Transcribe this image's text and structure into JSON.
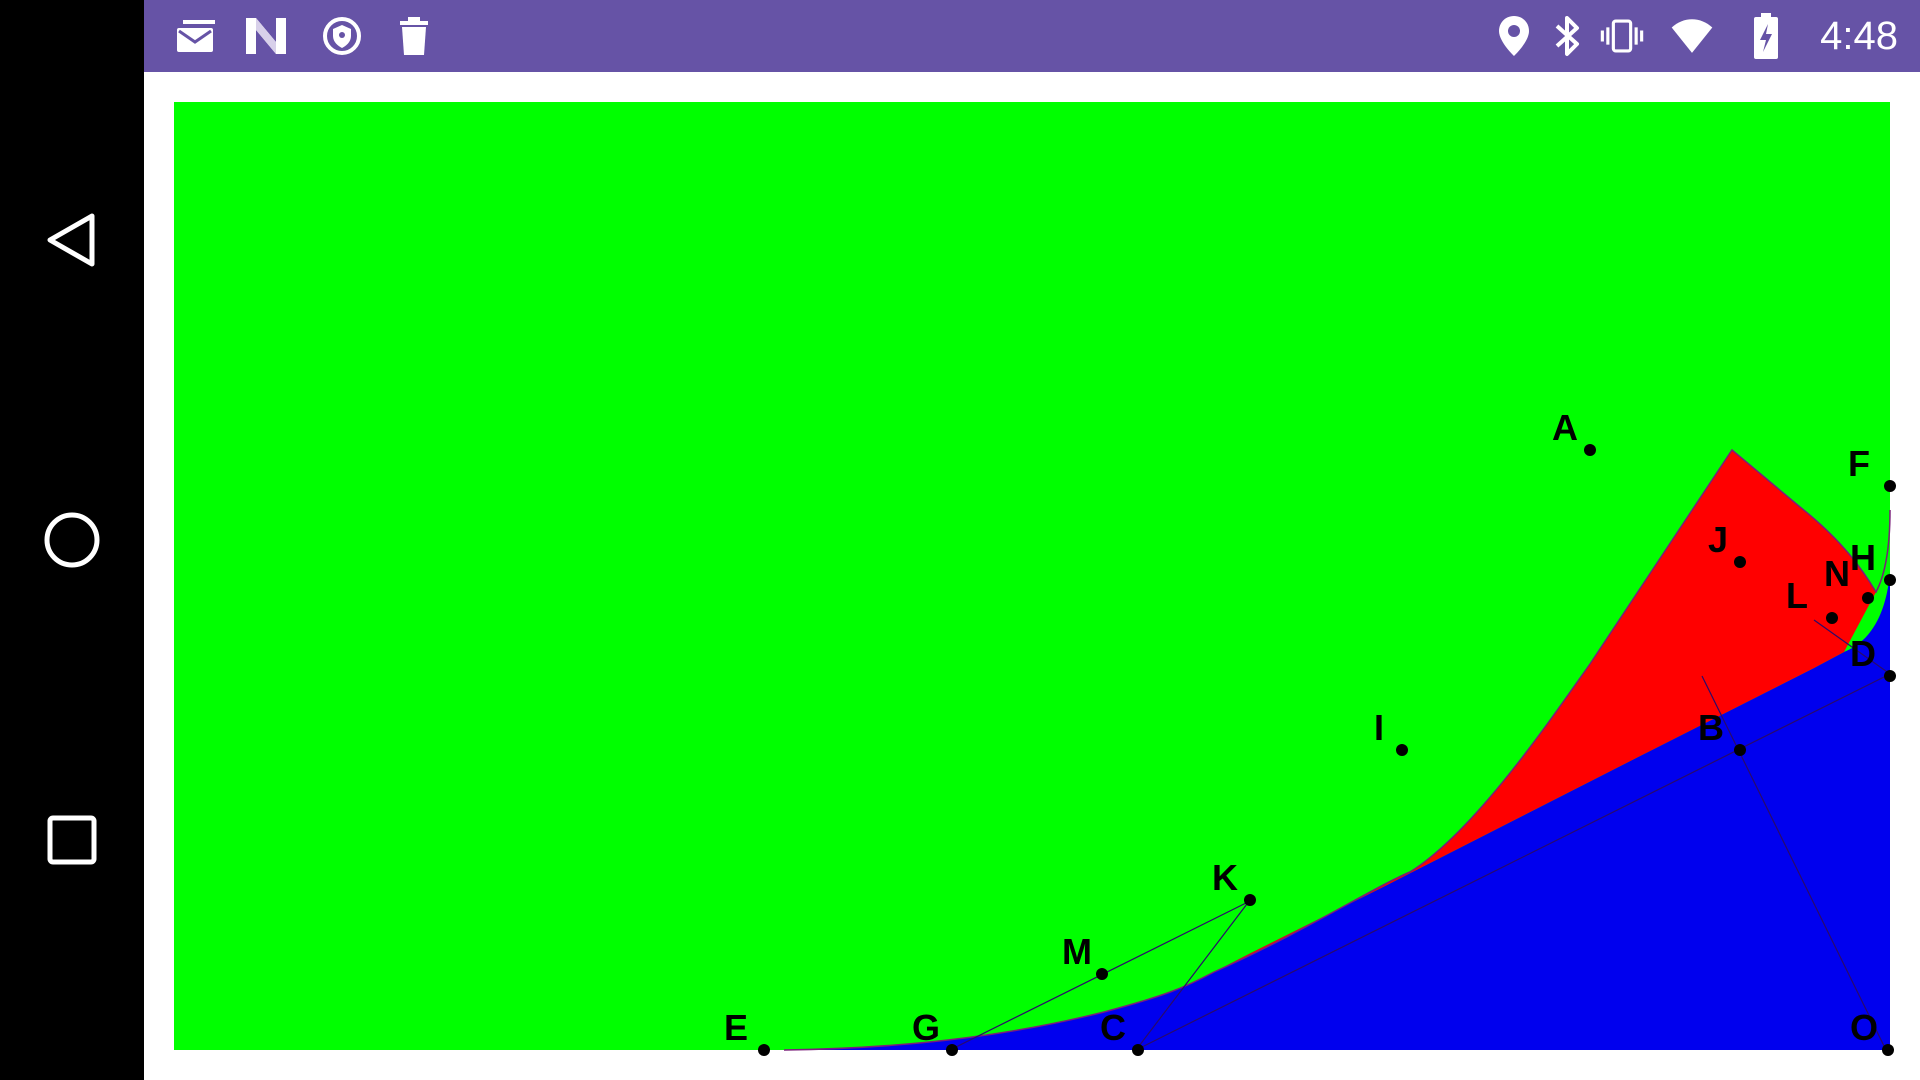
{
  "status_bar": {
    "time": "4:48",
    "background": "#6653a6",
    "left_icons": [
      "sms-message-icon",
      "n-notification-icon",
      "vpn-shield-icon",
      "trash-icon"
    ],
    "right_icons": [
      "location-pin-icon",
      "bluetooth-icon",
      "vibrate-icon",
      "wifi-icon",
      "battery-charging-icon"
    ]
  },
  "nav_bar": {
    "buttons": [
      "back-icon",
      "home-icon",
      "recents-icon"
    ]
  },
  "canvas": {
    "background_color": "#00ff00",
    "region_red_color": "#ff0000",
    "region_blue_color": "#0000ee",
    "points": [
      {
        "label": "A"
      },
      {
        "label": "F"
      },
      {
        "label": "J"
      },
      {
        "label": "H"
      },
      {
        "label": "N"
      },
      {
        "label": "L"
      },
      {
        "label": "D"
      },
      {
        "label": "I"
      },
      {
        "label": "B"
      },
      {
        "label": "K"
      },
      {
        "label": "M"
      },
      {
        "label": "E"
      },
      {
        "label": "G"
      },
      {
        "label": "C"
      },
      {
        "label": "O"
      }
    ]
  }
}
